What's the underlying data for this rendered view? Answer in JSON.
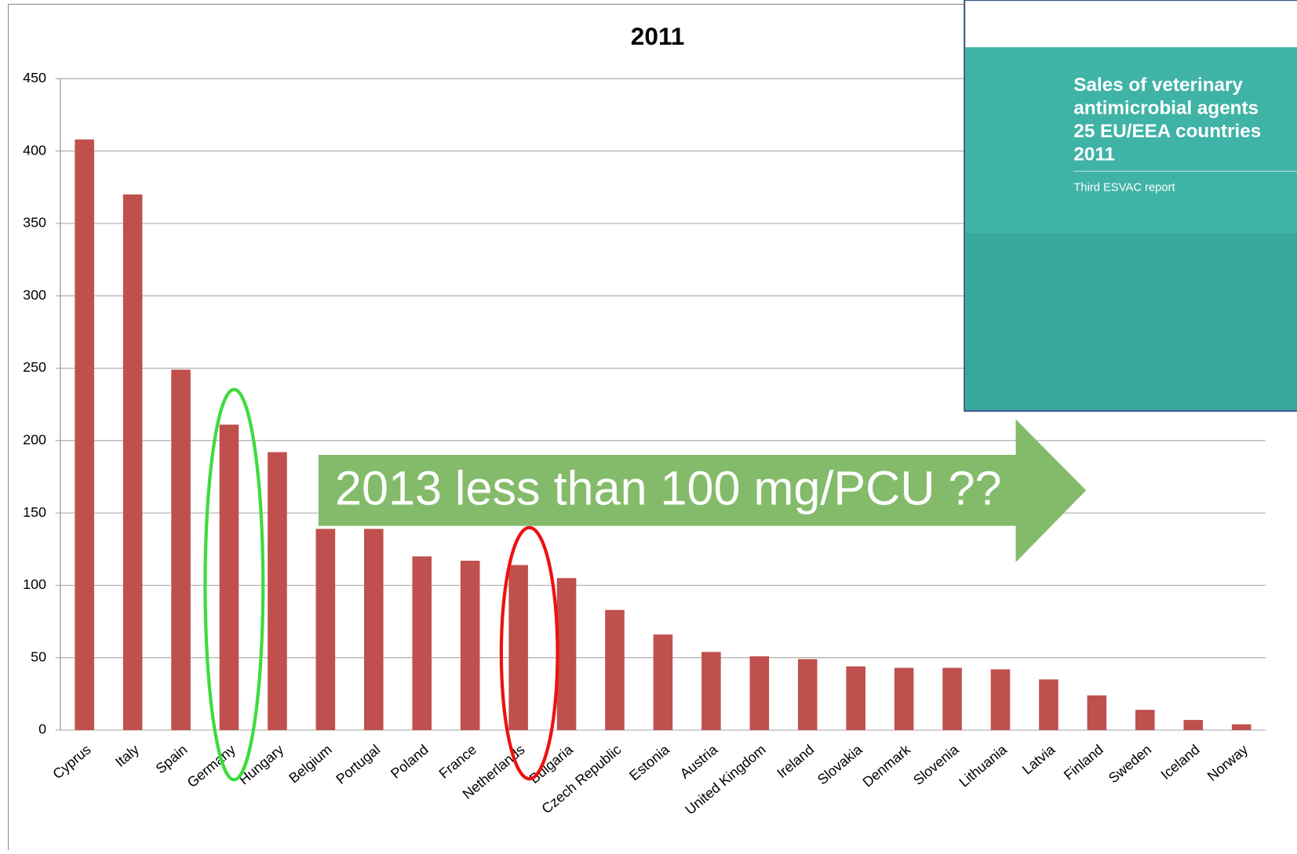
{
  "chart_data": {
    "type": "bar",
    "title": "2011",
    "categories": [
      "Cyprus",
      "Italy",
      "Spain",
      "Germany",
      "Hungary",
      "Belgium",
      "Portugal",
      "Poland",
      "France",
      "Netherlands",
      "Bulgaria",
      "Czech Republic",
      "Estonia",
      "Austria",
      "United Kingdom",
      "Ireland",
      "Slovakia",
      "Denmark",
      "Slovenia",
      "Lithuania",
      "Latvia",
      "Finland",
      "Sweden",
      "Iceland",
      "Norway"
    ],
    "values": [
      408,
      370,
      249,
      211,
      192,
      139,
      139,
      120,
      117,
      114,
      105,
      83,
      66,
      54,
      51,
      49,
      44,
      43,
      43,
      42,
      35,
      24,
      14,
      7,
      4
    ],
    "color": "#c0504d",
    "ylim": [
      0,
      450
    ],
    "yticks": [
      0,
      50,
      100,
      150,
      200,
      250,
      300,
      350,
      400,
      450
    ],
    "grid": true,
    "annotation": "2013 less than 100 mg/PCU ??"
  },
  "report_cover": {
    "title_lines": [
      "Sales of veterinary",
      "antimicrobial agents",
      "25 EU/EEA countries",
      "2011"
    ],
    "subtitle": "Third ESVAC report"
  }
}
